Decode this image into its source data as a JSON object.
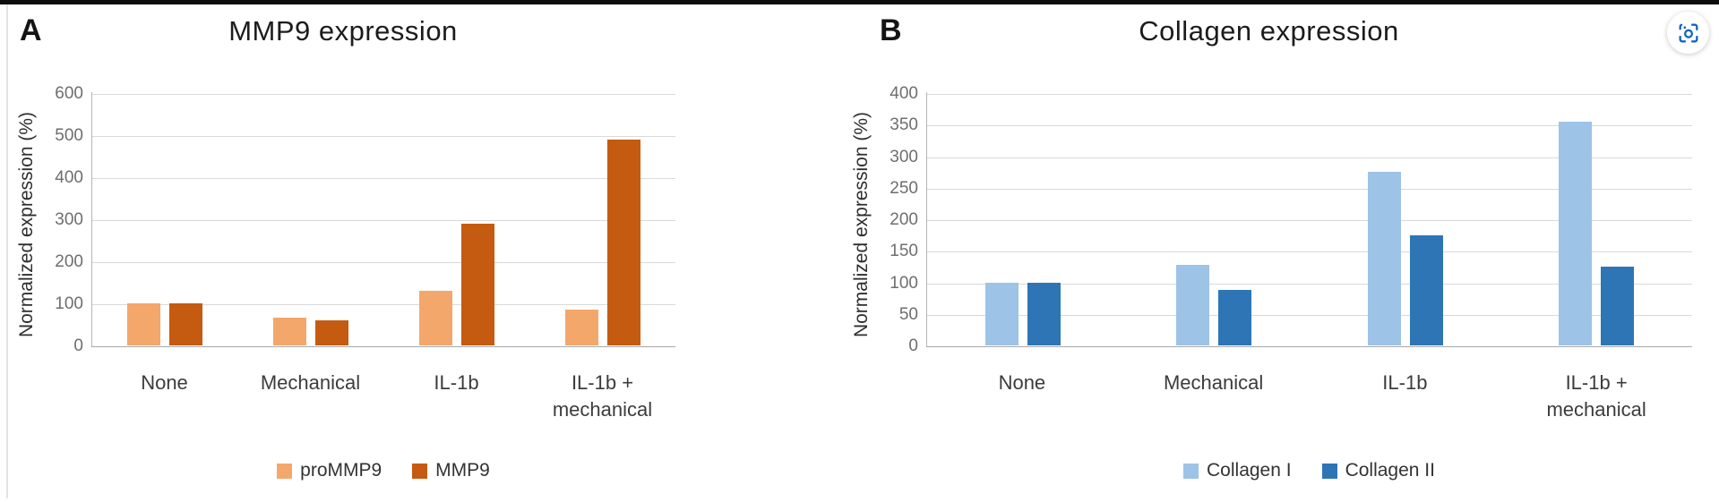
{
  "page": {
    "top_bar_color": "#0d0d0d",
    "background": "#ffffff"
  },
  "capture_button": {
    "icon": "camera-viewfinder-icon",
    "color": "#1266c0"
  },
  "chart_data": [
    {
      "type": "bar",
      "panel_label": "A",
      "title": "MMP9 expression",
      "xlabel": "",
      "ylabel": "Normalized expression (%)",
      "categories": [
        "None",
        "Mechanical",
        "IL-1b",
        "IL-1b +\nmechanical"
      ],
      "series": [
        {
          "name": "proMMP9",
          "color": "#F4A76B",
          "values": [
            100,
            65,
            130,
            85
          ]
        },
        {
          "name": "MMP9",
          "color": "#C55A11",
          "values": [
            100,
            60,
            290,
            490
          ]
        }
      ],
      "ylim": [
        0,
        600
      ],
      "ytick_step": 100,
      "yticks": [
        0,
        100,
        200,
        300,
        400,
        500,
        600
      ],
      "grid": true,
      "legend_position": "bottom"
    },
    {
      "type": "bar",
      "panel_label": "B",
      "title": "Collagen expression",
      "xlabel": "",
      "ylabel": "Normalized expression (%)",
      "categories": [
        "None",
        "Mechanical",
        "IL-1b",
        "IL-1b +\nmechanical"
      ],
      "series": [
        {
          "name": "Collagen I",
          "color": "#9DC3E6",
          "values": [
            100,
            128,
            275,
            355
          ]
        },
        {
          "name": "Collagen II",
          "color": "#2E75B6",
          "values": [
            100,
            88,
            175,
            125
          ]
        }
      ],
      "ylim": [
        0,
        400
      ],
      "ytick_step": 50,
      "yticks": [
        0,
        50,
        100,
        150,
        200,
        250,
        300,
        350,
        400
      ],
      "grid": true,
      "legend_position": "bottom"
    }
  ]
}
